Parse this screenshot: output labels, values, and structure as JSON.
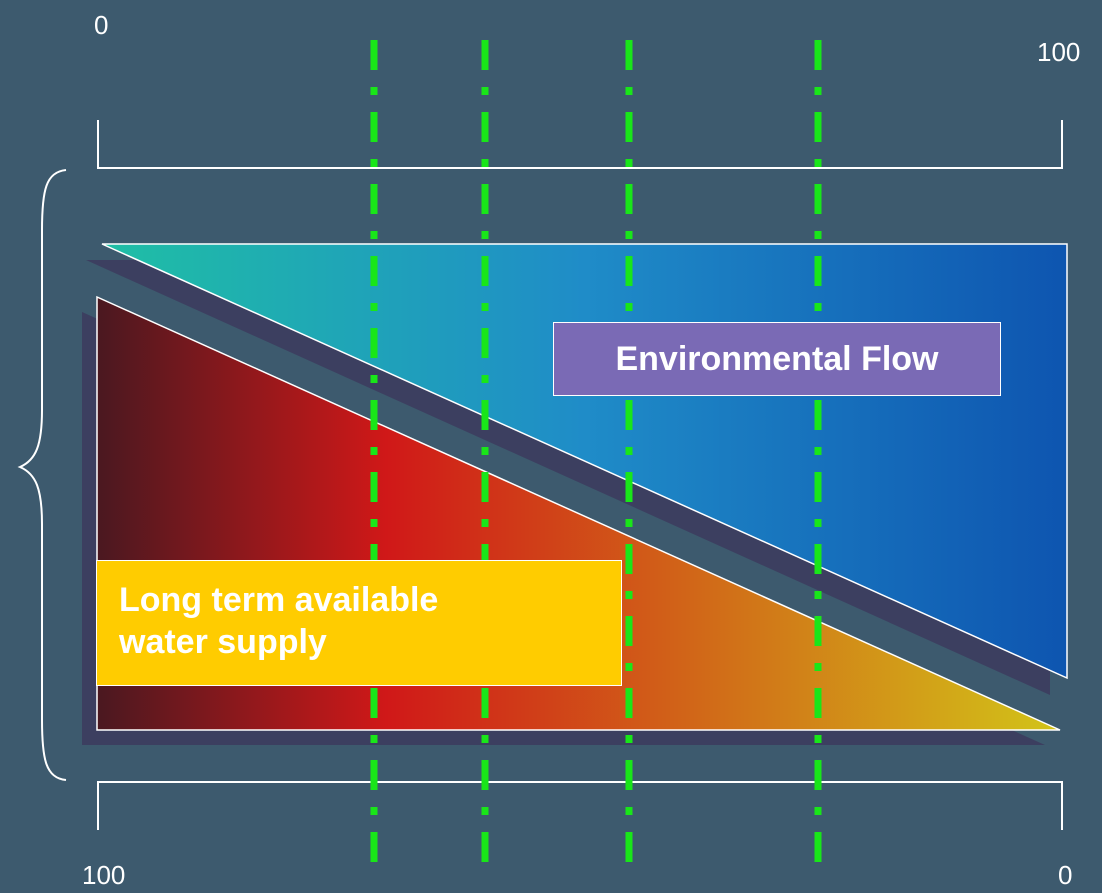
{
  "scales": {
    "top": {
      "start_label": "0",
      "end_label": "100"
    },
    "bottom": {
      "start_label": "100",
      "end_label": "0"
    }
  },
  "regions": {
    "environmental_flow": {
      "label": "Environmental Flow",
      "gradient_colors": [
        "#1fbfa5",
        "#1f8cc8",
        "#0e55b0"
      ],
      "label_box_color": "#7a6ab5"
    },
    "water_supply": {
      "label_line1": "Long term available",
      "label_line2": "water supply",
      "gradient_colors": [
        "#4a1820",
        "#d01818",
        "#d2c418"
      ],
      "label_box_color": "#ffcc00"
    }
  },
  "colors": {
    "background": "#3d5a6e",
    "divider_lines": "#19e619",
    "outline": "#ffffff",
    "shadow": "#3c3f60"
  },
  "icons": {
    "brace": "left-curly-brace-icon"
  }
}
